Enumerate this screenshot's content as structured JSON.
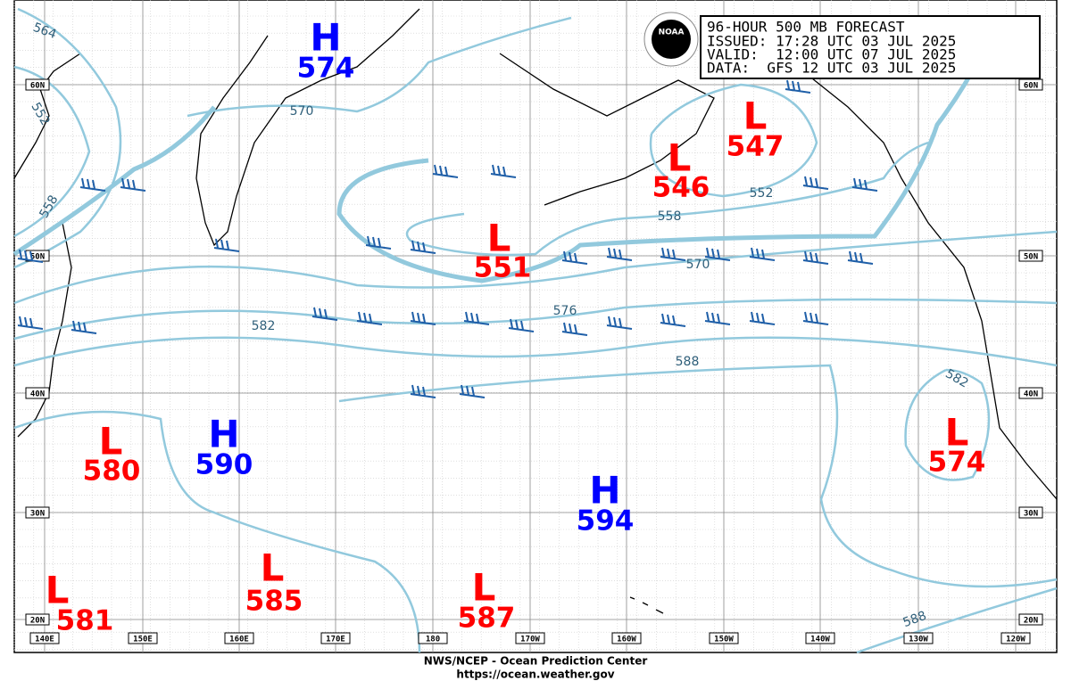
{
  "header": {
    "lines": [
      "96-HOUR 500 MB FORECAST",
      "ISSUED: 17:28 UTC 03 JUL 2025",
      "VALID:  12:00 UTC 07 JUL 2025",
      "DATA:  GFS 12 UTC 03 JUL 2025"
    ],
    "logo": "NOAA"
  },
  "systems": [
    {
      "symbol": "H",
      "value": 574
    },
    {
      "symbol": "H",
      "value": 590
    },
    {
      "symbol": "H",
      "value": 594
    },
    {
      "symbol": "L",
      "value": 546
    },
    {
      "symbol": "L",
      "value": 547
    },
    {
      "symbol": "L",
      "value": 551
    },
    {
      "symbol": "L",
      "value": 580
    },
    {
      "symbol": "L",
      "value": 574
    },
    {
      "symbol": "L",
      "value": 581
    },
    {
      "symbol": "L",
      "value": 585
    },
    {
      "symbol": "L",
      "value": 587
    }
  ],
  "contour_labels": [
    564,
    552,
    570,
    558,
    552,
    558,
    570,
    576,
    582,
    588,
    582,
    588
  ],
  "latitudes": [
    "60N",
    "50N",
    "40N",
    "30N",
    "20N"
  ],
  "longitudes": [
    "140E",
    "150E",
    "160E",
    "170E",
    "180",
    "170W",
    "160W",
    "150W",
    "140W",
    "130W",
    "120W"
  ],
  "footer": [
    "NWS/NCEP - Ocean Prediction Center",
    "https://ocean.weather.gov"
  ]
}
